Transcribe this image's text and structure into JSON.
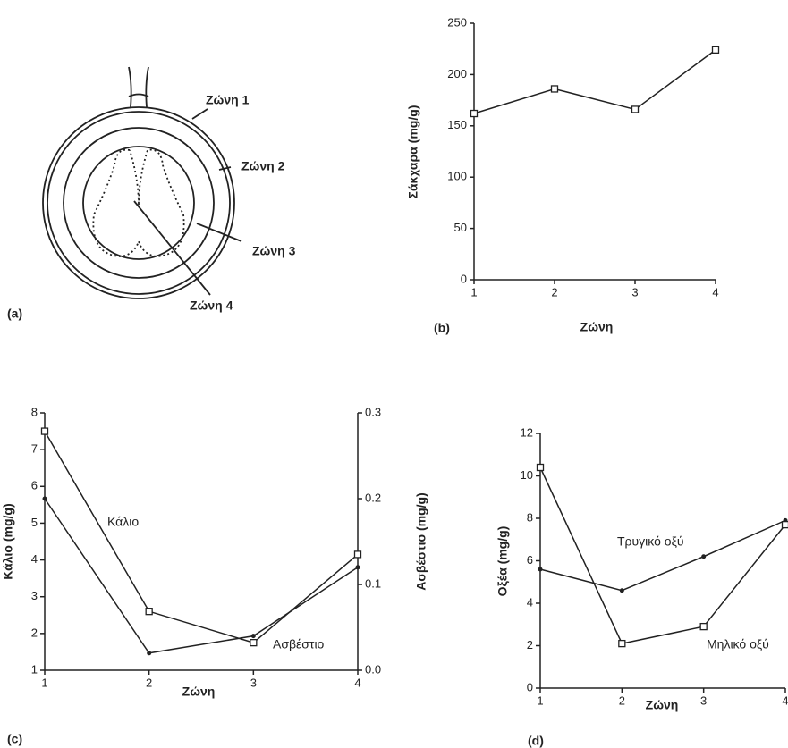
{
  "diagram": {
    "labels": [
      "Ζώνη 1",
      "Ζώνη 2",
      "Ζώνη 3",
      "Ζώνη 4"
    ],
    "panel": "(a)"
  },
  "chart_data": [
    {
      "type": "line",
      "panel": "(b)",
      "x_label": "Ζώνη",
      "y_label": "Σάκχαρα (mg/g)",
      "x": [
        1,
        2,
        3,
        4
      ],
      "xlim": [
        1,
        4
      ],
      "xticks": [
        1,
        2,
        3,
        4
      ],
      "ylim": [
        0,
        250
      ],
      "yticks": [
        0,
        50,
        100,
        150,
        200,
        250
      ],
      "series": [
        {
          "name": "Σάκχαρα",
          "color": "#222222",
          "marker": "square",
          "values": [
            162,
            186,
            166,
            224
          ]
        }
      ]
    },
    {
      "type": "line",
      "panel": "(c)",
      "x_label": "Ζώνη",
      "y_label": "Κάλιο (mg/g)",
      "y2_label": "Ασβέστιο (mg/g)",
      "x": [
        1,
        2,
        3,
        4
      ],
      "xlim": [
        1,
        4
      ],
      "xticks": [
        1,
        2,
        3,
        4
      ],
      "ylim": [
        1,
        8
      ],
      "yticks": [
        1,
        2,
        3,
        4,
        5,
        6,
        7,
        8
      ],
      "y2lim": [
        0,
        0.3
      ],
      "y2ticks": [
        {
          "value": 0,
          "label": "0.0"
        },
        0.1,
        0.2,
        0.3
      ],
      "series": [
        {
          "name": "Κάλιο",
          "color": "#222222",
          "marker": "square",
          "values": [
            7.5,
            2.6,
            1.75,
            4.15
          ]
        },
        {
          "name": "Ασβέστιο",
          "color": "#222222",
          "marker": "dot",
          "axis": "y2",
          "values": [
            0.2,
            0.02,
            0.04,
            0.12
          ]
        }
      ]
    },
    {
      "type": "line",
      "panel": "(d)",
      "x_label": "Ζώνη",
      "y_label": "Οξέα (mg/g)",
      "x": [
        1,
        2,
        3,
        4
      ],
      "xlim": [
        1,
        4
      ],
      "xticks": [
        1,
        2,
        3,
        4
      ],
      "ylim": [
        0,
        12
      ],
      "yticks": [
        0,
        2,
        4,
        6,
        8,
        10,
        12
      ],
      "series": [
        {
          "name": "Τρυγικό οξύ",
          "color": "#222222",
          "marker": "dot",
          "values": [
            5.6,
            4.6,
            6.2,
            7.9
          ]
        },
        {
          "name": "Μηλικό οξύ",
          "color": "#222222",
          "marker": "square",
          "values": [
            10.4,
            2.1,
            2.9,
            7.7
          ]
        }
      ]
    }
  ]
}
